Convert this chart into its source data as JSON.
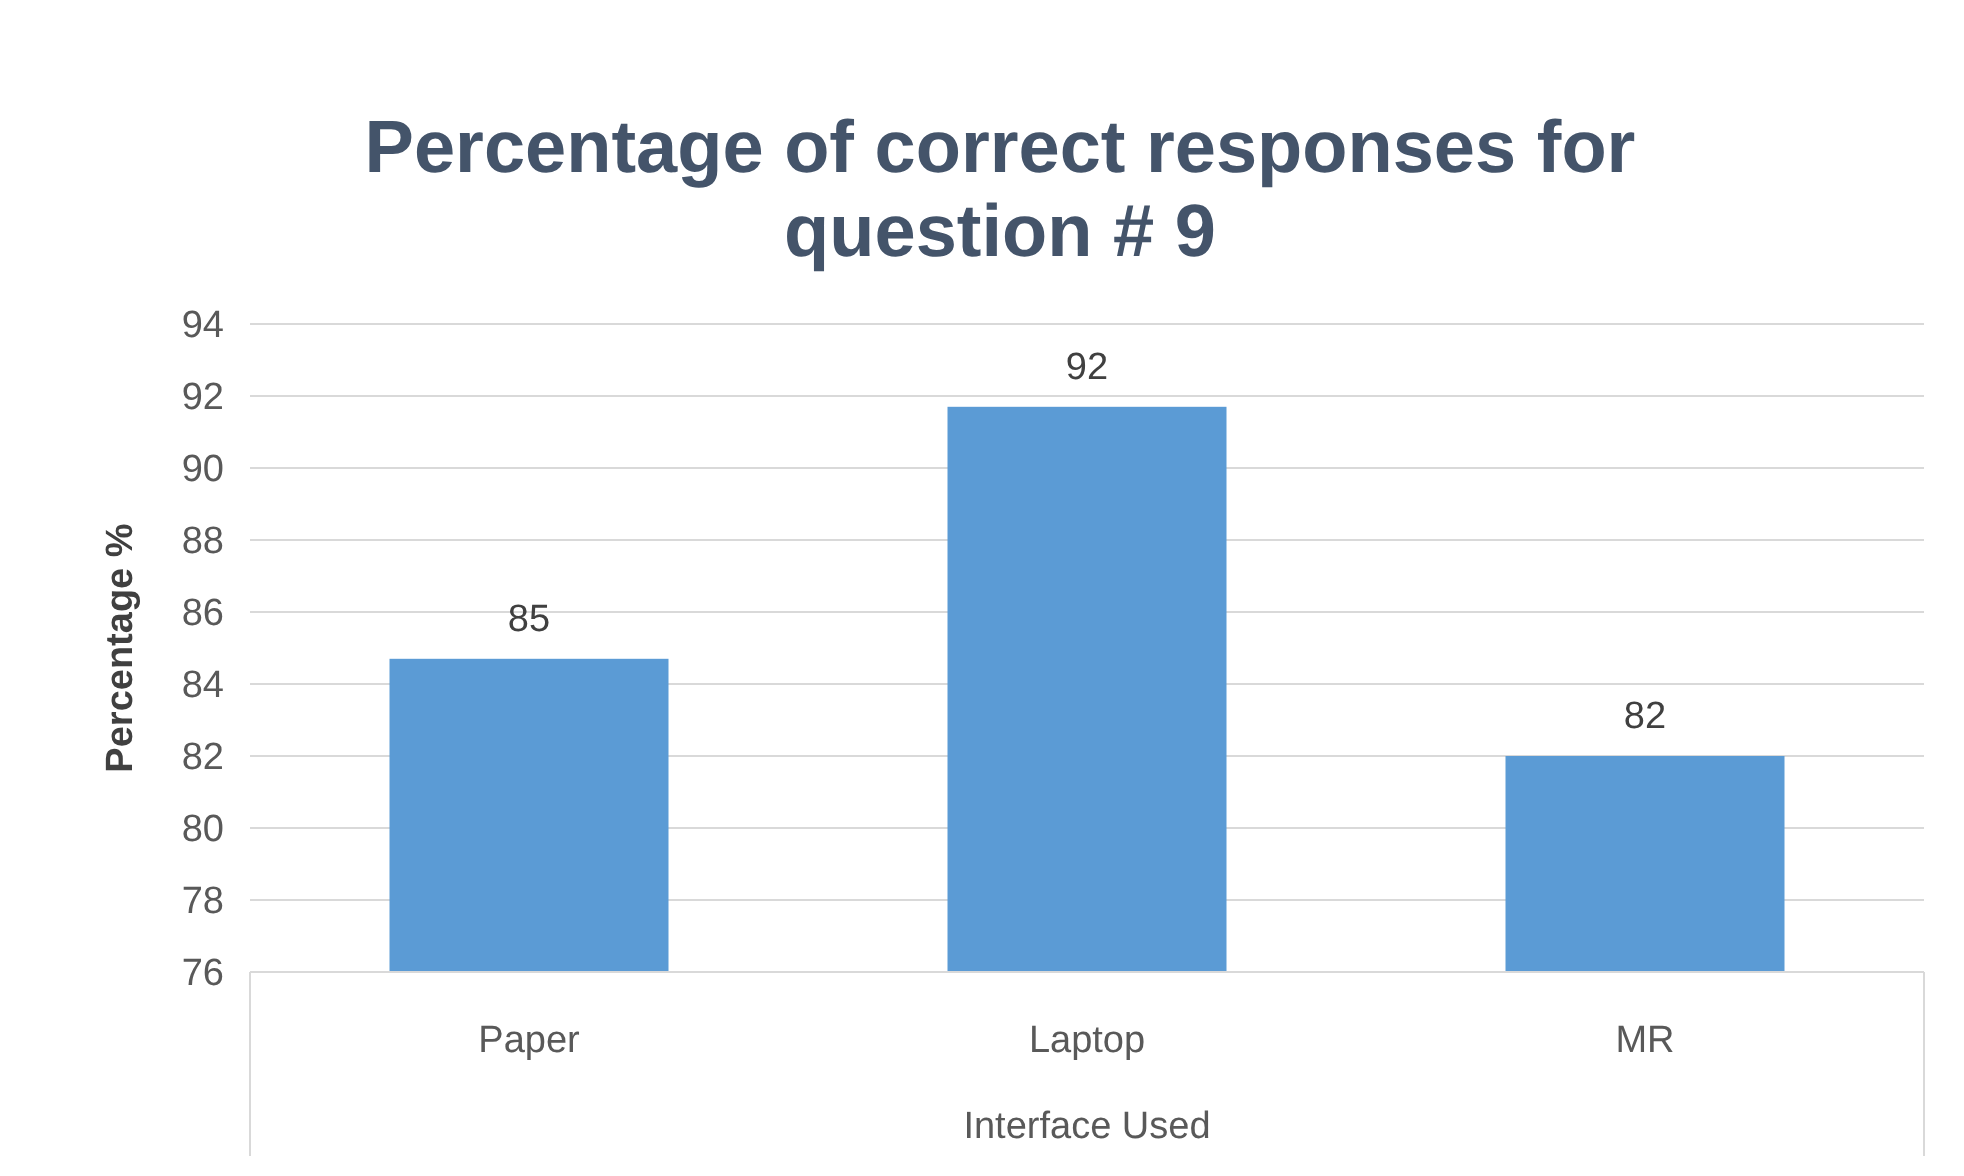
{
  "chart_data": {
    "type": "bar",
    "title": "Percentage of correct responses for question # 9",
    "xlabel": "Interface Used",
    "ylabel": "Percentage %",
    "categories": [
      "Paper",
      "Laptop",
      "MR"
    ],
    "values": [
      84.7,
      91.7,
      82
    ],
    "value_labels": [
      "85",
      "92",
      "82"
    ],
    "color": "#5b9bd5",
    "ylim": [
      76,
      94
    ],
    "yticks": [
      76,
      78,
      80,
      82,
      84,
      86,
      88,
      90,
      92,
      94
    ],
    "grid": "y"
  }
}
